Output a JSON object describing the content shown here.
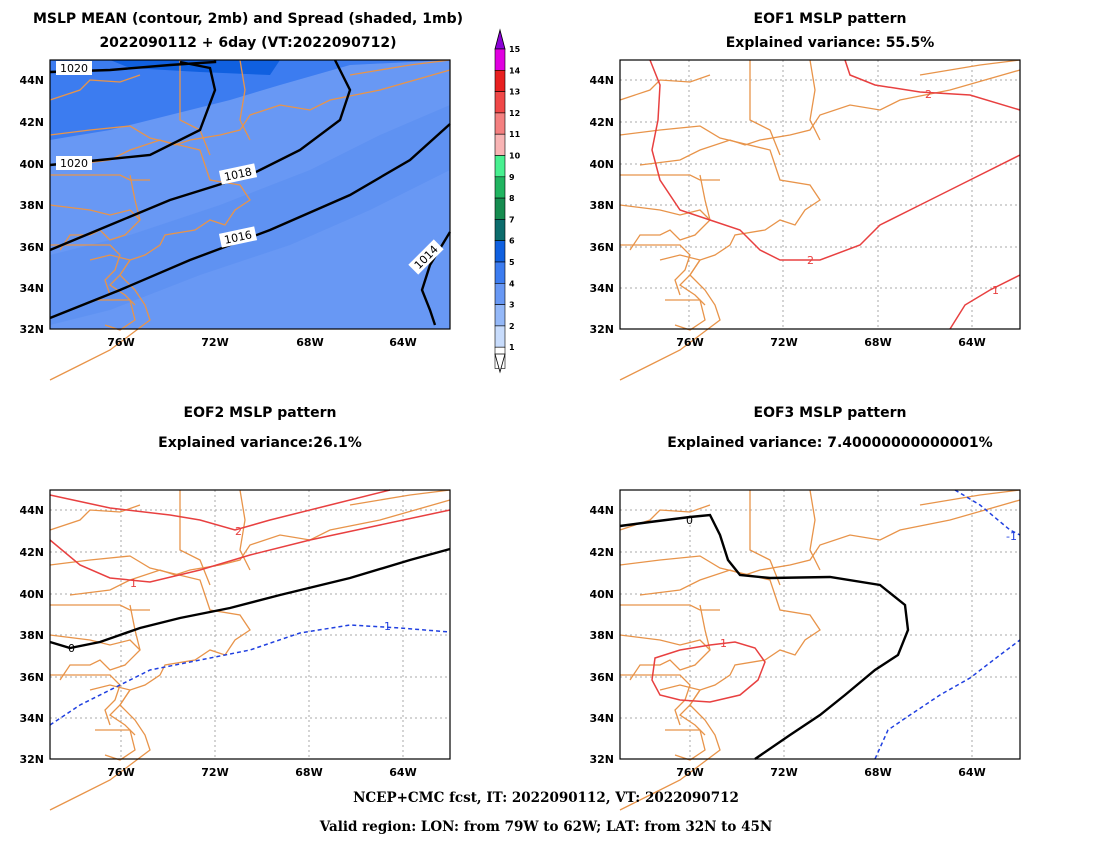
{
  "panels": [
    {
      "id": "mean",
      "title_lines": [
        "MSLP MEAN (contour, 2mb) and Spread (shaded, 1mb)",
        "2022090112 + 6day (VT:2022090712)"
      ],
      "contour_labels": [
        "1020",
        "1020",
        "1018",
        "1016",
        "1014"
      ]
    },
    {
      "id": "eof1",
      "title_lines": [
        "EOF1 MSLP pattern",
        "Explained variance: 55.5%"
      ],
      "contour_labels": [
        "2",
        "2",
        "1"
      ]
    },
    {
      "id": "eof2",
      "title_lines": [
        "EOF2 MSLP pattern",
        "Explained variance:26.1%"
      ],
      "contour_labels": [
        "2",
        "1",
        "0",
        "-1"
      ]
    },
    {
      "id": "eof3",
      "title_lines": [
        "EOF3 MSLP pattern",
        "Explained variance: 7.40000000000001%"
      ],
      "contour_labels": [
        "0",
        "1",
        "-1"
      ]
    }
  ],
  "axes": {
    "lon_ticks": [
      "76W",
      "72W",
      "68W",
      "64W"
    ],
    "lat_ticks": [
      "44N",
      "42N",
      "40N",
      "38N",
      "36N",
      "34N",
      "32N"
    ]
  },
  "colorbar": {
    "labels": [
      "15",
      "14",
      "13",
      "12",
      "11",
      "10",
      "9",
      "8",
      "7",
      "6",
      "5",
      "4",
      "3",
      "2",
      "1"
    ],
    "colors": [
      "#8b00d6",
      "#e000e0",
      "#e82020",
      "#f04848",
      "#f48080",
      "#f8b4b4",
      "#48f090",
      "#20b460",
      "#168c50",
      "#0c6c6c",
      "#1060e0",
      "#3c7cf0",
      "#6898f4",
      "#94b8f8",
      "#c8dcfc",
      "#ffffff"
    ]
  },
  "footer": [
    "NCEP+CMC fcst, IT: 2022090112, VT: 2022090712",
    "Valid region: LON: from 79W to 62W; LAT: from 32N to 45N"
  ]
}
